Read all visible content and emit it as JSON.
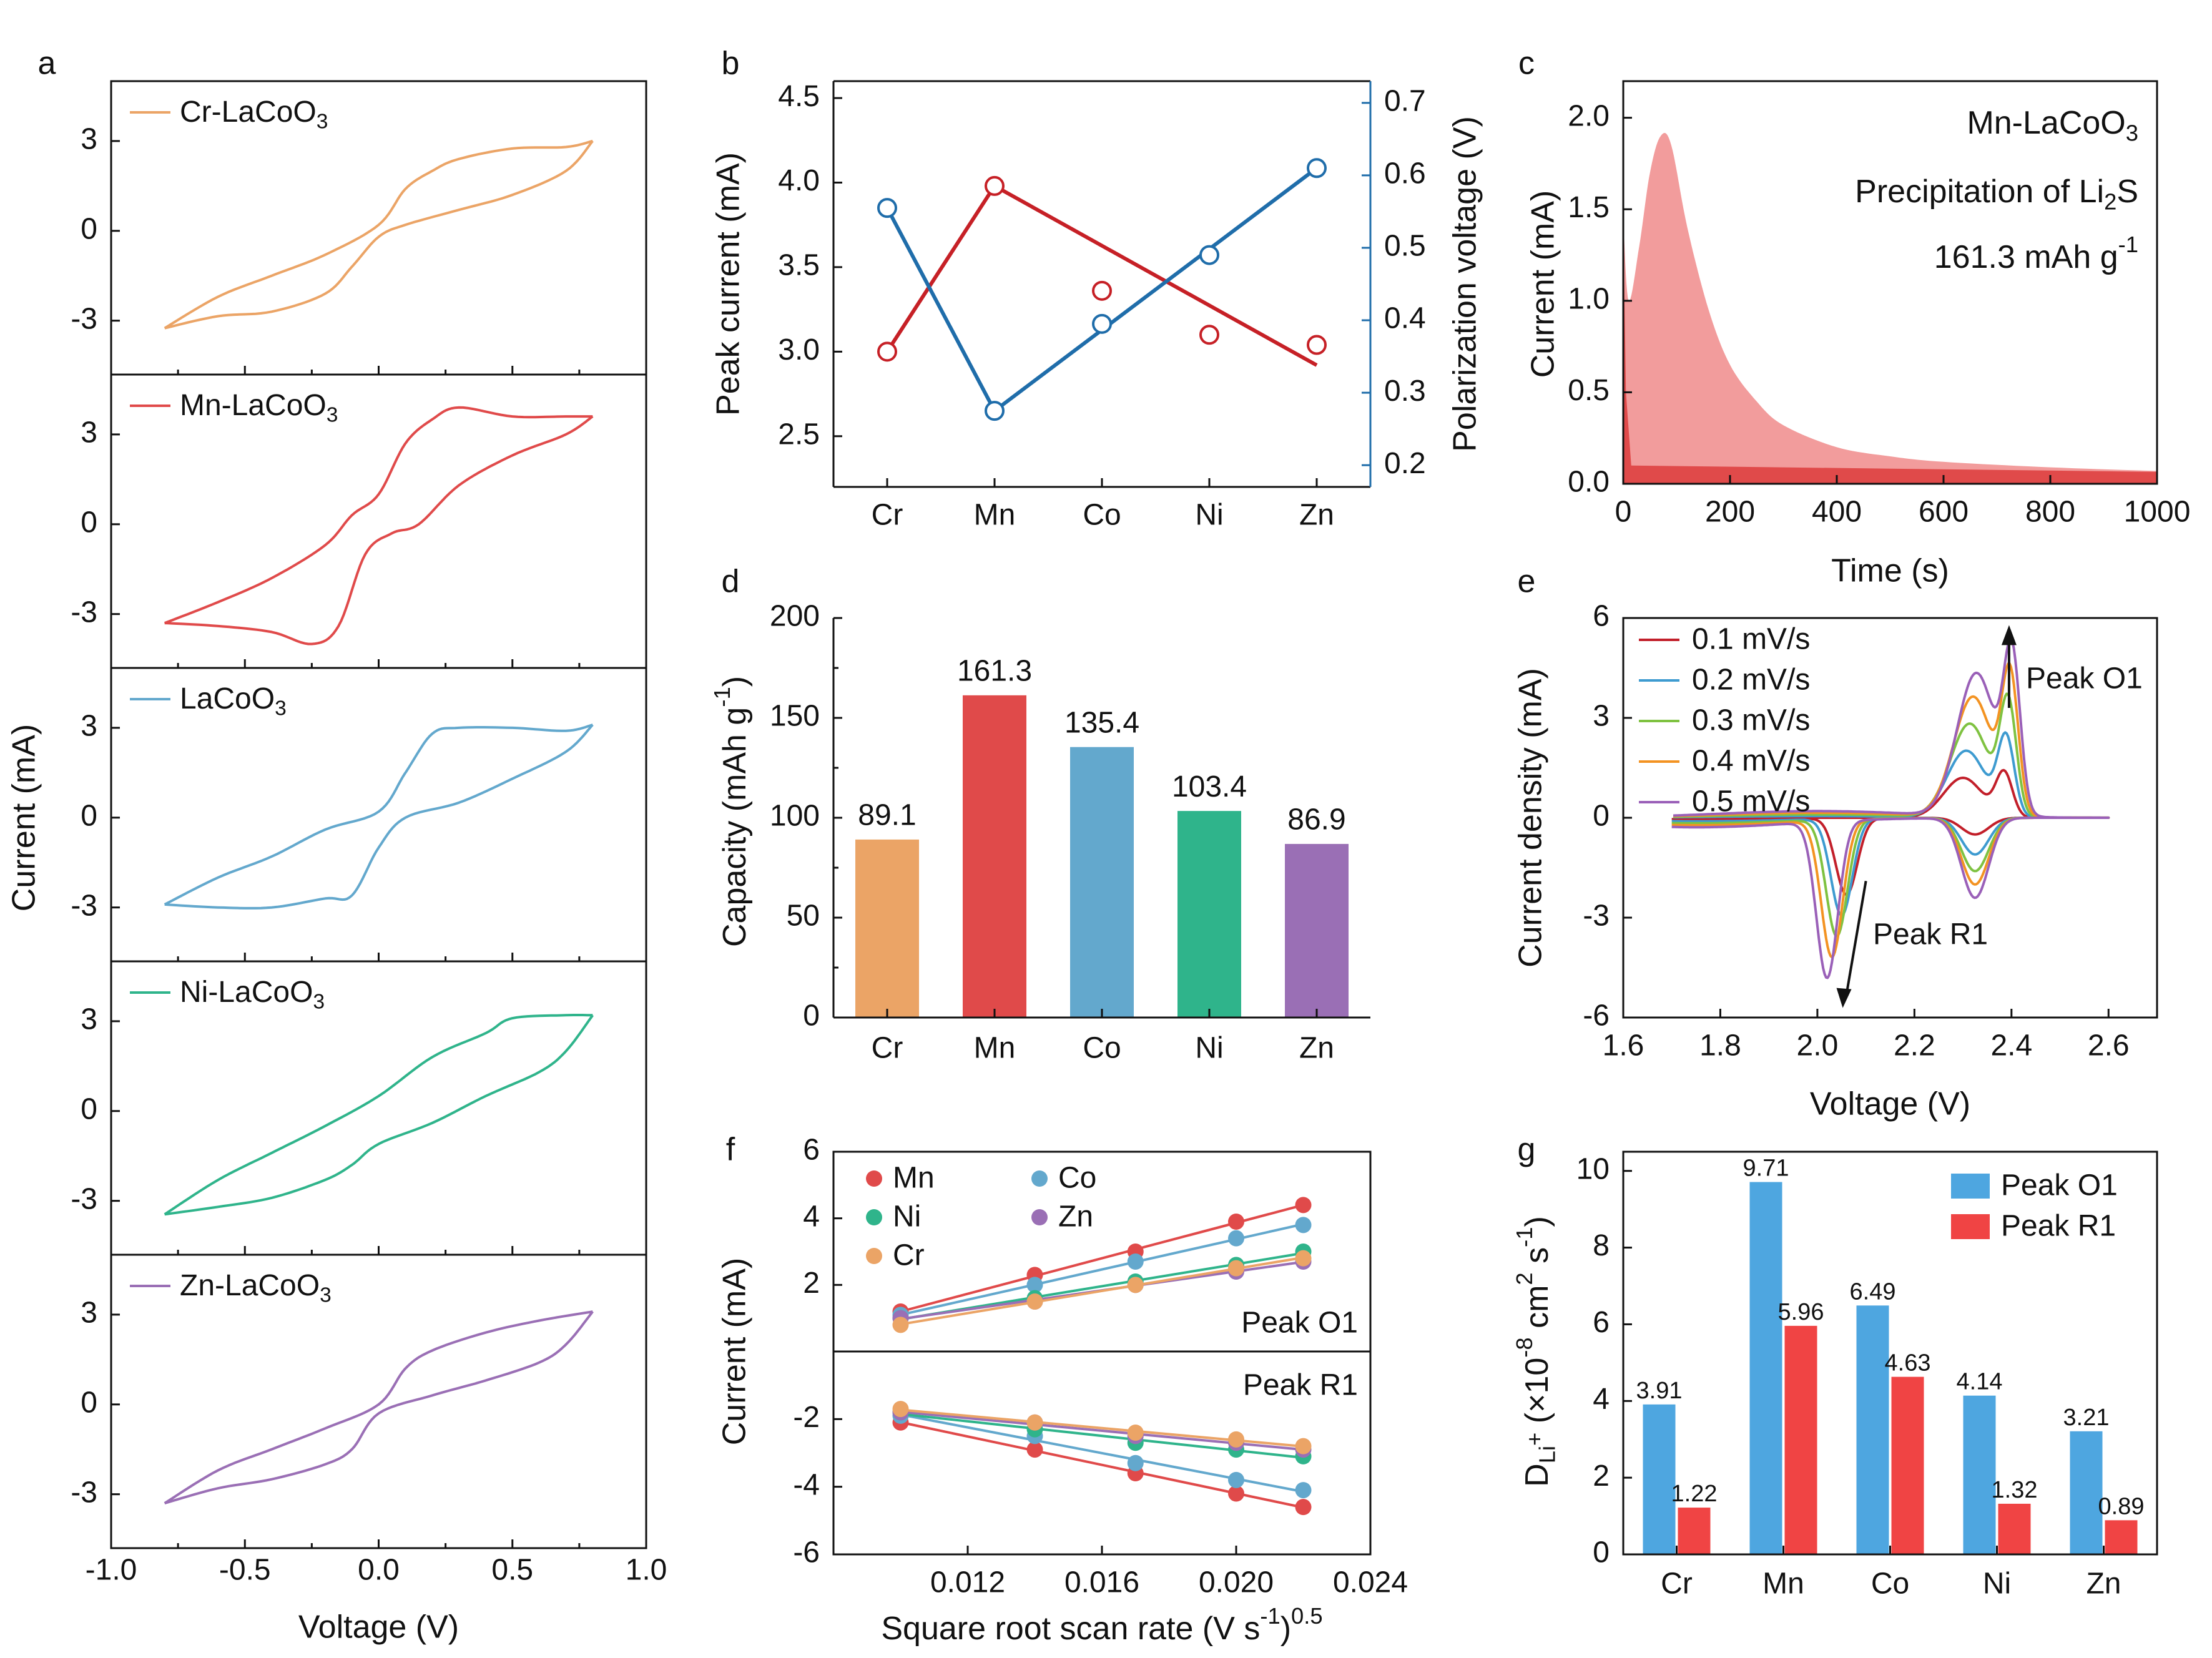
{
  "colors": {
    "cr": "#EBA466",
    "mn": "#E04A4A",
    "lacoo3": "#63A8CD",
    "ni": "#2FB48B",
    "zn": "#9A6FB5",
    "dark_red": "#C62026",
    "dark_blue": "#1F6DAA",
    "blue_bar": "#4EA6E0",
    "red_bar": "#F04444",
    "pink": "#F29C9C"
  },
  "chart_data": [
    {
      "panel": "a",
      "type": "line",
      "panel_label": "a",
      "xlabel": "Voltage (V)",
      "ylabel": "Current (mA)",
      "xlim": [
        -1.0,
        1.0
      ],
      "xticks": [
        "-1.0",
        "-0.5",
        "0.0",
        "0.5",
        "1.0"
      ],
      "ylim": [
        -4.8,
        5.0
      ],
      "yticks": [
        "-3",
        "0",
        "3"
      ],
      "legend": [
        {
          "name": "Cr-LaCoO",
          "sub": "3"
        },
        {
          "name": "Mn-LaCoO",
          "sub": "3"
        },
        {
          "name": "LaCoO",
          "sub": "3"
        },
        {
          "name": "Ni-LaCoO",
          "sub": "3"
        },
        {
          "name": "Zn-LaCoO",
          "sub": "3"
        }
      ],
      "series": [
        {
          "upper": [
            [
              -0.8,
              -3.25
            ],
            [
              -0.6,
              -2.2
            ],
            [
              -0.4,
              -1.5
            ],
            [
              -0.2,
              -0.8
            ],
            [
              0.0,
              0.2
            ],
            [
              0.1,
              1.4
            ],
            [
              0.2,
              2.0
            ],
            [
              0.3,
              2.4
            ],
            [
              0.5,
              2.75
            ],
            [
              0.7,
              2.8
            ],
            [
              0.8,
              3.0
            ]
          ],
          "lower": [
            [
              -0.8,
              -3.25
            ],
            [
              -0.6,
              -2.85
            ],
            [
              -0.4,
              -2.7
            ],
            [
              -0.2,
              -2.1
            ],
            [
              -0.1,
              -1.2
            ],
            [
              0.0,
              -0.2
            ],
            [
              0.1,
              0.2
            ],
            [
              0.3,
              0.7
            ],
            [
              0.5,
              1.2
            ],
            [
              0.7,
              2.0
            ],
            [
              0.8,
              3.0
            ]
          ]
        },
        {
          "upper": [
            [
              -0.8,
              -3.3
            ],
            [
              -0.6,
              -2.6
            ],
            [
              -0.4,
              -1.8
            ],
            [
              -0.2,
              -0.7
            ],
            [
              -0.1,
              0.3
            ],
            [
              0.0,
              1.0
            ],
            [
              0.1,
              2.7
            ],
            [
              0.2,
              3.5
            ],
            [
              0.3,
              3.9
            ],
            [
              0.5,
              3.6
            ],
            [
              0.7,
              3.6
            ],
            [
              0.8,
              3.6
            ]
          ],
          "lower": [
            [
              -0.8,
              -3.3
            ],
            [
              -0.6,
              -3.4
            ],
            [
              -0.4,
              -3.6
            ],
            [
              -0.25,
              -4.0
            ],
            [
              -0.15,
              -3.4
            ],
            [
              -0.05,
              -1.0
            ],
            [
              0.05,
              -0.3
            ],
            [
              0.15,
              0.0
            ],
            [
              0.3,
              1.3
            ],
            [
              0.5,
              2.3
            ],
            [
              0.7,
              3.0
            ],
            [
              0.8,
              3.6
            ]
          ]
        },
        {
          "upper": [
            [
              -0.8,
              -2.9
            ],
            [
              -0.6,
              -2.0
            ],
            [
              -0.4,
              -1.3
            ],
            [
              -0.2,
              -0.4
            ],
            [
              0.0,
              0.2
            ],
            [
              0.1,
              1.5
            ],
            [
              0.2,
              2.8
            ],
            [
              0.3,
              3.0
            ],
            [
              0.5,
              3.0
            ],
            [
              0.7,
              2.9
            ],
            [
              0.8,
              3.1
            ]
          ],
          "lower": [
            [
              -0.8,
              -2.9
            ],
            [
              -0.6,
              -3.0
            ],
            [
              -0.4,
              -3.0
            ],
            [
              -0.2,
              -2.7
            ],
            [
              -0.1,
              -2.6
            ],
            [
              0.0,
              -1.0
            ],
            [
              0.1,
              0.0
            ],
            [
              0.3,
              0.5
            ],
            [
              0.5,
              1.3
            ],
            [
              0.7,
              2.2
            ],
            [
              0.8,
              3.1
            ]
          ]
        },
        {
          "upper": [
            [
              -0.8,
              -3.45
            ],
            [
              -0.6,
              -2.3
            ],
            [
              -0.4,
              -1.4
            ],
            [
              -0.2,
              -0.5
            ],
            [
              0.0,
              0.5
            ],
            [
              0.2,
              1.8
            ],
            [
              0.4,
              2.6
            ],
            [
              0.5,
              3.1
            ],
            [
              0.7,
              3.2
            ],
            [
              0.8,
              3.2
            ]
          ],
          "lower": [
            [
              -0.8,
              -3.45
            ],
            [
              -0.6,
              -3.2
            ],
            [
              -0.4,
              -2.9
            ],
            [
              -0.2,
              -2.3
            ],
            [
              -0.1,
              -1.8
            ],
            [
              0.0,
              -1.1
            ],
            [
              0.2,
              -0.4
            ],
            [
              0.4,
              0.5
            ],
            [
              0.6,
              1.3
            ],
            [
              0.7,
              2.0
            ],
            [
              0.8,
              3.2
            ]
          ]
        },
        {
          "upper": [
            [
              -0.8,
              -3.3
            ],
            [
              -0.6,
              -2.2
            ],
            [
              -0.4,
              -1.5
            ],
            [
              -0.2,
              -0.8
            ],
            [
              0.0,
              0.0
            ],
            [
              0.1,
              1.2
            ],
            [
              0.2,
              1.8
            ],
            [
              0.4,
              2.4
            ],
            [
              0.6,
              2.8
            ],
            [
              0.8,
              3.1
            ]
          ],
          "lower": [
            [
              -0.8,
              -3.3
            ],
            [
              -0.6,
              -2.8
            ],
            [
              -0.4,
              -2.5
            ],
            [
              -0.2,
              -2.0
            ],
            [
              -0.1,
              -1.5
            ],
            [
              0.0,
              -0.3
            ],
            [
              0.2,
              0.3
            ],
            [
              0.4,
              0.8
            ],
            [
              0.6,
              1.4
            ],
            [
              0.7,
              2.0
            ],
            [
              0.8,
              3.1
            ]
          ]
        }
      ]
    },
    {
      "panel": "b",
      "type": "line",
      "panel_label": "b",
      "categories": [
        "Cr",
        "Mn",
        "Co",
        "Ni",
        "Zn"
      ],
      "ylabel": "Peak current (mA)",
      "ylabel2": "Polarization voltage (V)",
      "ylim": [
        2.2,
        4.6
      ],
      "ylim2": [
        0.17,
        0.73
      ],
      "yticks": [
        "2.5",
        "3.0",
        "3.5",
        "4.0",
        "4.5"
      ],
      "yticks2": [
        "0.2",
        "0.3",
        "0.4",
        "0.5",
        "0.6",
        "0.7"
      ],
      "series": [
        {
          "points": [
            3.0,
            3.98,
            3.36,
            3.1,
            3.04
          ],
          "fit": [
            [
              1,
              3.0
            ],
            [
              2,
              3.98
            ],
            [
              5,
              2.92
            ]
          ]
        },
        {
          "points": [
            0.555,
            0.275,
            0.395,
            0.49,
            0.61
          ],
          "fit": [
            [
              1,
              0.555
            ],
            [
              2,
              0.275
            ],
            [
              5,
              0.61
            ]
          ]
        }
      ]
    },
    {
      "panel": "c",
      "type": "area",
      "panel_label": "c",
      "xlabel": "Time (s)",
      "ylabel": "Current (mA)",
      "xlim": [
        0,
        1000
      ],
      "ylim": [
        0,
        2.2
      ],
      "xticks": [
        "0",
        "200",
        "400",
        "600",
        "800",
        "1000"
      ],
      "yticks": [
        "0.0",
        "0.5",
        "1.0",
        "1.5",
        "2.0"
      ],
      "annotations": [
        {
          "text": "Mn-LaCoO",
          "sub": "3"
        },
        {
          "text": "Precipitation of Li",
          "sub": "2",
          "tail": "S"
        },
        {
          "text": "161.3 mAh g",
          "sup": "-1"
        }
      ],
      "curve": [
        [
          0,
          1.45
        ],
        [
          10,
          1.0
        ],
        [
          30,
          1.3
        ],
        [
          50,
          1.7
        ],
        [
          70,
          1.9
        ],
        [
          90,
          1.85
        ],
        [
          120,
          1.4
        ],
        [
          160,
          0.95
        ],
        [
          200,
          0.65
        ],
        [
          250,
          0.45
        ],
        [
          300,
          0.32
        ],
        [
          400,
          0.2
        ],
        [
          500,
          0.15
        ],
        [
          600,
          0.12
        ],
        [
          800,
          0.09
        ],
        [
          1000,
          0.07
        ]
      ]
    },
    {
      "panel": "d",
      "type": "bar",
      "panel_label": "d",
      "categories": [
        "Cr",
        "Mn",
        "Co",
        "Ni",
        "Zn"
      ],
      "values": [
        89.1,
        161.3,
        135.4,
        103.4,
        86.9
      ],
      "labels": [
        "89.1",
        "161.3",
        "135.4",
        "103.4",
        "86.9"
      ],
      "ylabel": "Capacity (mAh g",
      "ylabel_sup": "-1",
      "ylabel_tail": ")",
      "ylim": [
        0,
        200
      ],
      "yticks": [
        "0",
        "50",
        "100",
        "150",
        "200"
      ]
    },
    {
      "panel": "e",
      "type": "line",
      "panel_label": "e",
      "xlabel": "Voltage (V)",
      "ylabel": "Current density (mA)",
      "xlim": [
        1.6,
        2.7
      ],
      "ylim": [
        -6,
        6
      ],
      "xticks": [
        "1.6",
        "1.8",
        "2.0",
        "2.2",
        "2.4",
        "2.6"
      ],
      "yticks": [
        "-6",
        "-3",
        "0",
        "3",
        "6"
      ],
      "legend": [
        "0.1 mV/s",
        "0.2 mV/s",
        "0.3 mV/s",
        "0.4 mV/s",
        "0.5 mV/s"
      ],
      "annotations": [
        "Peak O1",
        "Peak R1"
      ],
      "peaks": {
        "r1_v": [
          2.06,
          2.05,
          2.04,
          2.03,
          2.02
        ],
        "r1_i": [
          -2.3,
          -2.9,
          -3.5,
          -4.1,
          -4.7
        ],
        "r2_i": [
          -0.5,
          -1.1,
          -1.6,
          -2.0,
          -2.4
        ],
        "o1_i": [
          1.2,
          2.0,
          2.8,
          3.6,
          4.3
        ],
        "o2_i": [
          1.3,
          2.3,
          3.3,
          4.0,
          4.5
        ]
      }
    },
    {
      "panel": "f",
      "type": "scatter",
      "panel_label": "f",
      "xlabel": "Square root scan rate (V s",
      "xlabel_sup": "-1",
      "xlabel_tail": ")",
      "xlabel_pow": "0.5",
      "ylabel": "Current (mA)",
      "xlim": [
        0.008,
        0.024
      ],
      "xticks": [
        "0.012",
        "0.016",
        "0.020",
        "0.024"
      ],
      "ylim_top": [
        0,
        6
      ],
      "yticks_top": [
        "2",
        "4",
        "6"
      ],
      "ylim_bottom": [
        -6,
        0
      ],
      "yticks_bottom": [
        "-2",
        "-4",
        "-6"
      ],
      "panel_texts": [
        "Peak O1",
        "Peak R1"
      ],
      "legend": [
        "Mn",
        "Co",
        "Ni",
        "Zn",
        "Cr"
      ],
      "x": [
        0.01,
        0.014,
        0.017,
        0.02,
        0.022
      ],
      "series": [
        {
          "name": "Mn",
          "top": [
            1.2,
            2.3,
            3.0,
            3.9,
            4.4
          ],
          "bottom": [
            -2.1,
            -2.9,
            -3.6,
            -4.2,
            -4.6
          ]
        },
        {
          "name": "Co",
          "top": [
            1.1,
            2.0,
            2.7,
            3.4,
            3.8
          ],
          "bottom": [
            -1.9,
            -2.5,
            -3.3,
            -3.8,
            -4.1
          ]
        },
        {
          "name": "Ni",
          "top": [
            1.0,
            1.6,
            2.1,
            2.6,
            3.0
          ],
          "bottom": [
            -1.8,
            -2.3,
            -2.7,
            -2.9,
            -3.1
          ]
        },
        {
          "name": "Zn",
          "top": [
            1.0,
            1.5,
            2.0,
            2.4,
            2.7
          ],
          "bottom": [
            -1.8,
            -2.1,
            -2.5,
            -2.7,
            -2.9
          ]
        },
        {
          "name": "Cr",
          "top": [
            0.8,
            1.5,
            2.0,
            2.5,
            2.8
          ],
          "bottom": [
            -1.7,
            -2.1,
            -2.4,
            -2.6,
            -2.8
          ]
        }
      ]
    },
    {
      "panel": "g",
      "type": "bar",
      "panel_label": "g",
      "categories": [
        "Cr",
        "Mn",
        "Co",
        "Ni",
        "Zn"
      ],
      "ylim": [
        0,
        10.5
      ],
      "yticks": [
        "0",
        "2",
        "4",
        "6",
        "8",
        "10"
      ],
      "ylabel": "D",
      "ylabel_sub": "Li",
      "ylabel_subsup": "+",
      "ylabel_tail": " (×10",
      "ylabel_sup": "-8",
      "ylabel_tail2": " cm",
      "ylabel_sup2": "2",
      "ylabel_tail3": " s",
      "ylabel_sup3": "-1",
      "ylabel_tail4": ")",
      "series": [
        {
          "name": "Peak O1",
          "values": [
            3.91,
            9.71,
            6.49,
            4.14,
            3.21
          ],
          "labels": [
            "3.91",
            "9.71",
            "6.49",
            "4.14",
            "3.21"
          ]
        },
        {
          "name": "Peak R1",
          "values": [
            1.22,
            5.96,
            4.63,
            1.32,
            0.89
          ],
          "labels": [
            "1.22",
            "5.96",
            "4.63",
            "1.32",
            "0.89"
          ]
        }
      ]
    }
  ]
}
